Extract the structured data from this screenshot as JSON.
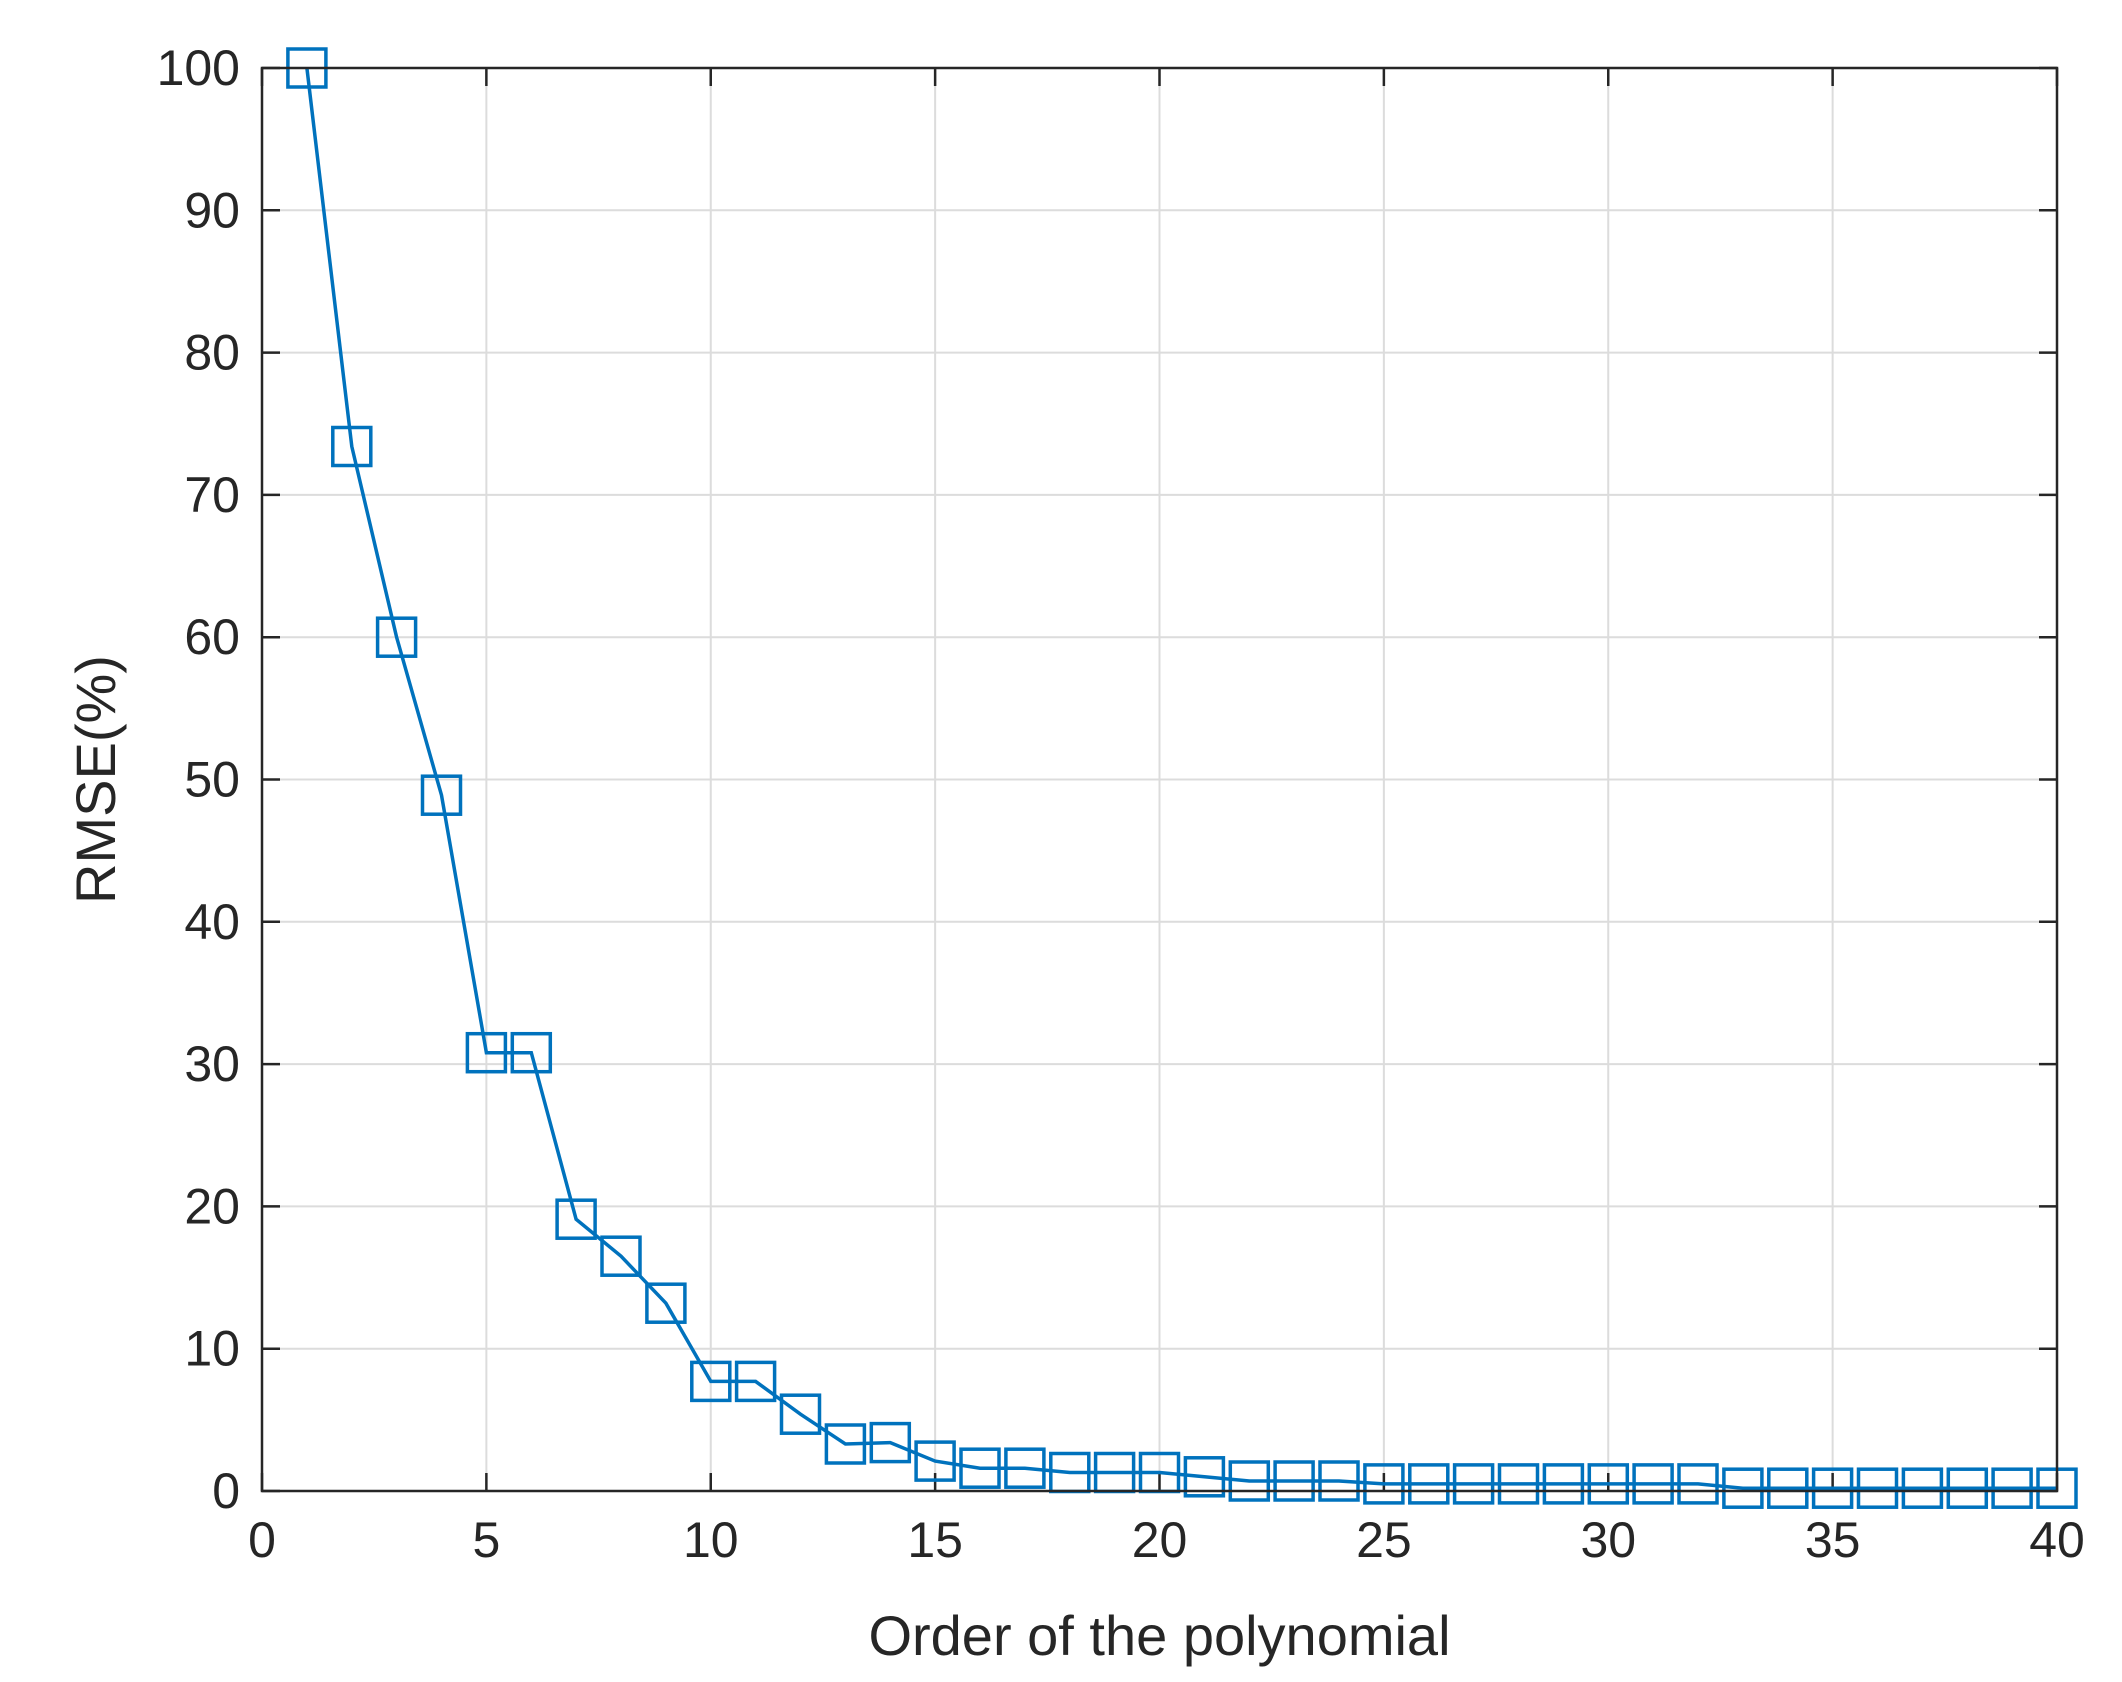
{
  "chart_data": {
    "type": "line",
    "title": "",
    "xlabel": "Order of the polynomial",
    "ylabel": "RMSE(%)",
    "xlim": [
      0,
      40
    ],
    "ylim": [
      0,
      100
    ],
    "xticks": [
      0,
      5,
      10,
      15,
      20,
      25,
      30,
      35,
      40
    ],
    "yticks": [
      0,
      10,
      20,
      30,
      40,
      50,
      60,
      70,
      80,
      90,
      100
    ],
    "grid": true,
    "marker": "square",
    "color": "#0072BD",
    "series": [
      {
        "x": [
          1,
          2,
          3,
          4,
          5,
          6,
          7,
          8,
          9,
          10,
          11,
          12,
          13,
          14,
          15,
          16,
          17,
          18,
          19,
          20,
          21,
          22,
          23,
          24,
          25,
          26,
          27,
          28,
          29,
          30,
          31,
          32,
          33,
          34,
          35,
          36,
          37,
          38,
          39,
          40
        ],
        "values": [
          100,
          73.4,
          60,
          48.9,
          30.8,
          30.8,
          19.1,
          16.5,
          13.2,
          7.7,
          7.7,
          5.4,
          3.3,
          3.4,
          2.1,
          1.6,
          1.6,
          1.3,
          1.3,
          1.3,
          1.0,
          0.7,
          0.7,
          0.7,
          0.5,
          0.5,
          0.5,
          0.5,
          0.5,
          0.5,
          0.5,
          0.5,
          0.2,
          0.2,
          0.2,
          0.2,
          0.2,
          0.2,
          0.2,
          0.2
        ]
      }
    ]
  }
}
